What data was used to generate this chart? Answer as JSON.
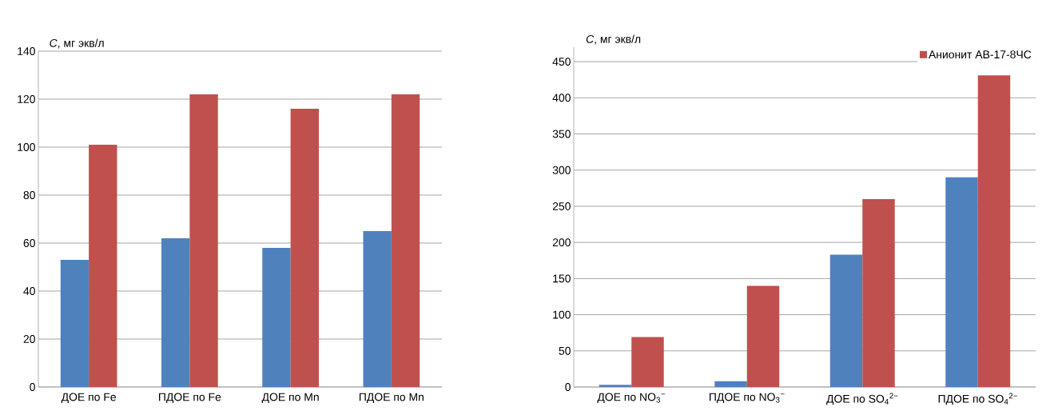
{
  "chart_data": [
    {
      "type": "bar",
      "ylabel": "*C*, мг экв/л",
      "categories": [
        "ДОЕ по Fe",
        "ПДОЕ по Fe",
        "ДОЕ по Mn",
        "ПДОЕ по Mn"
      ],
      "series": [
        {
          "color": "#4f81bd",
          "values": [
            53,
            62,
            58,
            65
          ]
        },
        {
          "color": "#c0504d",
          "values": [
            101,
            122,
            116,
            122
          ]
        }
      ],
      "ylim": [
        0,
        140
      ],
      "yticks": [
        0,
        20,
        40,
        60,
        80,
        100,
        120,
        140
      ],
      "grid": "y"
    },
    {
      "type": "bar",
      "ylabel": "*C*, мг экв/л",
      "categories": [
        "ДОЕ по NO$_{3}$$^{−}$",
        "ПДОЕ по NO$_{3}$$^{−}$",
        "ДОЕ по SO$_{4}$$^{2−}$",
        "ПДОЕ по SO$_{4}$$^{2−}$"
      ],
      "series": [
        {
          "color": "#4f81bd",
          "values": [
            3,
            8,
            183,
            290
          ]
        },
        {
          "name": "Анионит АВ-17-8ЧС",
          "color": "#c0504d",
          "values": [
            69,
            140,
            260,
            431
          ]
        }
      ],
      "ylim": [
        0,
        470
      ],
      "yticks": [
        0,
        50,
        100,
        150,
        200,
        250,
        300,
        350,
        400,
        450
      ],
      "grid": "y",
      "legend": "top right"
    }
  ]
}
